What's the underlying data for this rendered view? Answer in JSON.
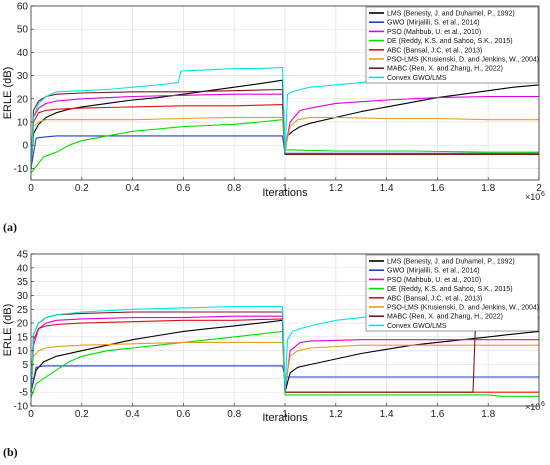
{
  "chart_data": [
    {
      "type": "line",
      "panel_label": "(a)",
      "xlabel": "Iterations",
      "ylabel": "ERLE (dB)",
      "x_multiplier": "×10",
      "x_multiplier_exp": "6",
      "xlim": [
        0,
        2
      ],
      "ylim": [
        -15,
        60
      ],
      "xticks": [
        0,
        0.2,
        0.4,
        0.6,
        0.8,
        1,
        1.2,
        1.4,
        1.6,
        1.8,
        2
      ],
      "xtick_labels": [
        "0",
        "0.2",
        "0.4",
        "0.6",
        "0.8",
        "1",
        "1.2",
        "1.4",
        "1.6",
        "1.8",
        "2"
      ],
      "yticks": [
        -10,
        0,
        10,
        20,
        30,
        40,
        50,
        60
      ],
      "ytick_labels": [
        "-10",
        "0",
        "10",
        "20",
        "30",
        "40",
        "50",
        "60"
      ],
      "grid": true,
      "legend_position": "top-right",
      "series": [
        {
          "name": "LMS (Benesty, J. and Duhamel, P., 1992)",
          "color": "#000000",
          "x": [
            0,
            0.01,
            0.03,
            0.06,
            0.1,
            0.15,
            0.2,
            0.3,
            0.4,
            0.5,
            0.6,
            0.7,
            0.8,
            0.9,
            0.99,
            1.0,
            1.01,
            1.03,
            1.06,
            1.1,
            1.2,
            1.3,
            1.4,
            1.5,
            1.6,
            1.7,
            1.8,
            1.9,
            2.0
          ],
          "y": [
            -10,
            5,
            9,
            12,
            14,
            15.5,
            16.5,
            18,
            19.5,
            20.5,
            22,
            23.5,
            25,
            26.5,
            28,
            -3,
            4,
            6,
            8,
            9.5,
            12,
            14.5,
            16.5,
            18.5,
            20.5,
            22,
            23.5,
            25,
            26
          ]
        },
        {
          "name": "GWO (Mirjalili, S. et al., 2014)",
          "color": "#1f3fbf",
          "x": [
            0,
            0.02,
            0.05,
            0.1,
            0.3,
            0.5,
            0.7,
            0.9,
            0.99,
            1.0,
            1.1,
            1.3,
            1.5,
            1.7,
            1.9,
            2.0
          ],
          "y": [
            -10,
            3,
            3.5,
            4,
            4,
            4,
            4,
            4,
            4,
            -3.5,
            -3.5,
            -3.5,
            -3.5,
            -3.5,
            -3.5,
            -3.5
          ]
        },
        {
          "name": "PSO (Mahbub, U. et al., 2010)",
          "color": "#e000e0",
          "x": [
            0,
            0.01,
            0.03,
            0.06,
            0.1,
            0.2,
            0.4,
            0.6,
            0.8,
            0.99,
            1.0,
            1.02,
            1.06,
            1.1,
            1.2,
            1.4,
            1.6,
            1.8,
            2.0
          ],
          "y": [
            -10,
            12,
            16,
            18,
            19,
            20,
            21,
            21.5,
            22,
            22,
            -2,
            10,
            15,
            16,
            18,
            19.5,
            20.5,
            21,
            21
          ]
        },
        {
          "name": "DE (Reddy, K.S. and Sahoo, S.K., 2015)",
          "color": "#00dd00",
          "x": [
            0,
            0.05,
            0.1,
            0.15,
            0.2,
            0.3,
            0.4,
            0.5,
            0.6,
            0.7,
            0.8,
            0.9,
            0.99,
            1.0,
            1.2,
            1.5,
            1.8,
            2.0
          ],
          "y": [
            -12,
            -5,
            -3,
            0,
            2,
            4,
            6,
            7,
            8,
            8.5,
            9,
            10,
            11,
            -2,
            -2.5,
            -2.5,
            -3,
            -3
          ]
        },
        {
          "name": "ABC (Bansal, J.C. et al., 2013)",
          "color": "#e01010",
          "x": [
            0,
            0.01,
            0.03,
            0.06,
            0.1,
            0.2,
            0.4,
            0.6,
            0.8,
            0.99,
            1.0,
            1.2,
            1.5,
            1.8,
            2.0
          ],
          "y": [
            -10,
            10,
            14,
            15,
            15.5,
            16,
            16.5,
            17,
            17,
            17.5,
            -4,
            -4,
            -4,
            -4,
            -4
          ]
        },
        {
          "name": "PSO-LMS (Krusienski, D. and Jenkins, W., 2004)",
          "color": "#e0a020",
          "x": [
            0,
            0.01,
            0.03,
            0.06,
            0.1,
            0.2,
            0.4,
            0.6,
            0.8,
            0.99,
            1.0,
            1.02,
            1.05,
            1.1,
            1.2,
            1.4,
            1.6,
            1.8,
            2.0
          ],
          "y": [
            -10,
            8,
            10,
            11,
            11,
            11,
            11,
            11.5,
            12,
            12,
            -2,
            8,
            11,
            12,
            12,
            11.5,
            11.5,
            11,
            11
          ]
        },
        {
          "name": "MABC (Ren, X. and Zhang, H., 2022)",
          "color": "#7a1a1a",
          "x": [
            0,
            0.01,
            0.03,
            0.06,
            0.1,
            0.2,
            0.4,
            0.6,
            0.8,
            0.99,
            1.0,
            1.2,
            1.5,
            1.8,
            2.0
          ],
          "y": [
            -10,
            15,
            19,
            21,
            22,
            22.5,
            23,
            23,
            23.5,
            24,
            -4,
            -4,
            -4,
            -4,
            -4
          ]
        },
        {
          "name": "Convex GWO/LMS",
          "color": "#00e5e5",
          "x": [
            0,
            0.01,
            0.03,
            0.06,
            0.1,
            0.2,
            0.3,
            0.4,
            0.5,
            0.58,
            0.59,
            0.7,
            0.8,
            0.9,
            0.99,
            1.0,
            1.01,
            1.03,
            1.06,
            1.1,
            1.2,
            1.3,
            1.4,
            1.5,
            1.6,
            1.7,
            1.8,
            1.9,
            2.0
          ],
          "y": [
            -10,
            12,
            18,
            21,
            23,
            23.5,
            24,
            25,
            26,
            27,
            32,
            32.5,
            33,
            33,
            33.5,
            -3,
            22,
            23,
            24,
            25,
            26,
            27,
            28,
            28.5,
            29,
            29.5,
            30,
            30,
            30
          ]
        }
      ]
    },
    {
      "type": "line",
      "panel_label": "(b)",
      "xlabel": "Iterations",
      "ylabel": "ERLE (dB)",
      "x_multiplier": "×10",
      "x_multiplier_exp": "6",
      "xlim": [
        0,
        2
      ],
      "ylim": [
        -10,
        45
      ],
      "xticks": [
        0,
        0.2,
        0.4,
        0.6,
        0.8,
        1,
        1.2,
        1.4,
        1.6,
        1.8
      ],
      "xtick_labels": [
        "0",
        "0.2",
        "0.4",
        "0.6",
        "0.8",
        "1",
        "1.2",
        "1.4",
        "1.6",
        "1.8"
      ],
      "yticks": [
        -10,
        -5,
        0,
        5,
        10,
        15,
        20,
        25,
        30,
        35,
        40,
        45
      ],
      "ytick_labels": [
        "-10",
        "-5",
        "0",
        "5",
        "10",
        "15",
        "20",
        "25",
        "30",
        "35",
        "40",
        "45"
      ],
      "grid": true,
      "legend_position": "top-right",
      "series": [
        {
          "name": "LMS (Benesty, J. and Duhamel, P., 1992)",
          "color": "#000000",
          "x": [
            0,
            0.02,
            0.05,
            0.1,
            0.2,
            0.3,
            0.4,
            0.5,
            0.6,
            0.7,
            0.8,
            0.9,
            0.99,
            1.0,
            1.02,
            1.05,
            1.1,
            1.2,
            1.3,
            1.4,
            1.5,
            1.6,
            1.7,
            1.8,
            1.9,
            2.0
          ],
          "y": [
            -5,
            3,
            6,
            8,
            10,
            12,
            14,
            15.5,
            17,
            18,
            19,
            20,
            21,
            -5,
            2,
            4,
            5,
            7,
            9,
            10.5,
            12,
            13,
            14,
            15,
            16,
            17
          ]
        },
        {
          "name": "GWO (Mirjalili, S. et al., 2014)",
          "color": "#1f3fbf",
          "x": [
            0,
            0.02,
            0.05,
            0.1,
            0.3,
            0.5,
            0.7,
            0.9,
            0.99,
            1.0,
            1.1,
            1.3,
            1.5,
            1.7,
            1.9,
            2.0
          ],
          "y": [
            -5,
            4,
            4.5,
            4.5,
            4.5,
            4.5,
            4.5,
            4.5,
            4.5,
            0.5,
            0.5,
            0.5,
            0.5,
            0.5,
            0.5,
            0.5
          ]
        },
        {
          "name": "PSO (Mahbub, U. et al., 2010)",
          "color": "#e000e0",
          "x": [
            0,
            0.01,
            0.03,
            0.06,
            0.1,
            0.2,
            0.4,
            0.6,
            0.8,
            0.99,
            1.0,
            1.02,
            1.06,
            1.1,
            1.3,
            1.5,
            1.7,
            1.9,
            2.0
          ],
          "y": [
            -5,
            12,
            18,
            20,
            21,
            21.5,
            22,
            22,
            22.5,
            22.5,
            -5,
            10,
            13,
            13.5,
            14,
            14,
            14,
            14,
            14
          ]
        },
        {
          "name": "DE (Reddy, K.S. and Sahoo, S.K., 2015)",
          "color": "#00dd00",
          "x": [
            0,
            0.02,
            0.05,
            0.1,
            0.15,
            0.2,
            0.3,
            0.4,
            0.5,
            0.6,
            0.7,
            0.8,
            0.9,
            0.99,
            1.0,
            1.2,
            1.5,
            1.8,
            1.85,
            2.0
          ],
          "y": [
            -7,
            -2,
            0,
            3,
            6,
            8,
            10,
            11,
            12,
            13,
            14,
            15,
            16,
            17,
            -6,
            -6,
            -6,
            -6,
            -6.5,
            -6.5
          ]
        },
        {
          "name": "ABC (Bansal, J.C. et al., 2013)",
          "color": "#e01010",
          "x": [
            0,
            0.01,
            0.03,
            0.06,
            0.1,
            0.2,
            0.4,
            0.6,
            0.8,
            0.99,
            1.0,
            1.2,
            1.4,
            1.6,
            1.8,
            2.0
          ],
          "y": [
            -5,
            14,
            18,
            19,
            19.5,
            20,
            20.5,
            21,
            21,
            21.5,
            -5,
            -5,
            -5,
            -5,
            -5,
            -5
          ]
        },
        {
          "name": "PSO-LMS (Krusienski, D. and Jenkins, W., 2004)",
          "color": "#e0a020",
          "x": [
            0,
            0.01,
            0.03,
            0.06,
            0.1,
            0.2,
            0.4,
            0.6,
            0.8,
            0.99,
            1.0,
            1.02,
            1.05,
            1.1,
            1.3,
            1.5,
            1.7,
            1.9,
            2.0
          ],
          "y": [
            -5,
            8,
            10,
            11,
            11.5,
            12,
            12.5,
            13,
            13,
            13,
            -3,
            8,
            10,
            11,
            12,
            12,
            12,
            12,
            12
          ]
        },
        {
          "name": "MABC (Ren, X. and Zhang, H., 2022)",
          "color": "#7a1a1a",
          "x": [
            0,
            0.01,
            0.03,
            0.06,
            0.1,
            0.2,
            0.4,
            0.6,
            0.8,
            0.99,
            1.0,
            1.2,
            1.4,
            1.6,
            1.74,
            1.75,
            1.8,
            1.84,
            1.85,
            1.9,
            2.0
          ],
          "y": [
            -5,
            16,
            20,
            22,
            23,
            23.5,
            24,
            24,
            24,
            24,
            -5,
            -5,
            -5,
            -5,
            -5,
            20,
            20,
            20,
            22,
            22,
            22
          ]
        },
        {
          "name": "Convex GWO/LMS",
          "color": "#00e5e5",
          "x": [
            0,
            0.01,
            0.03,
            0.06,
            0.1,
            0.2,
            0.4,
            0.6,
            0.8,
            0.99,
            1.0,
            1.01,
            1.03,
            1.06,
            1.1,
            1.15,
            1.2,
            1.3,
            1.4,
            1.5,
            1.6,
            1.7,
            1.8,
            1.9,
            2.0
          ],
          "y": [
            -5,
            16,
            20,
            22,
            23,
            24,
            25,
            25.5,
            26,
            26,
            -5,
            14,
            17,
            18,
            19,
            20,
            21,
            22,
            23,
            24,
            24.5,
            25,
            25,
            25,
            25
          ]
        }
      ]
    }
  ]
}
